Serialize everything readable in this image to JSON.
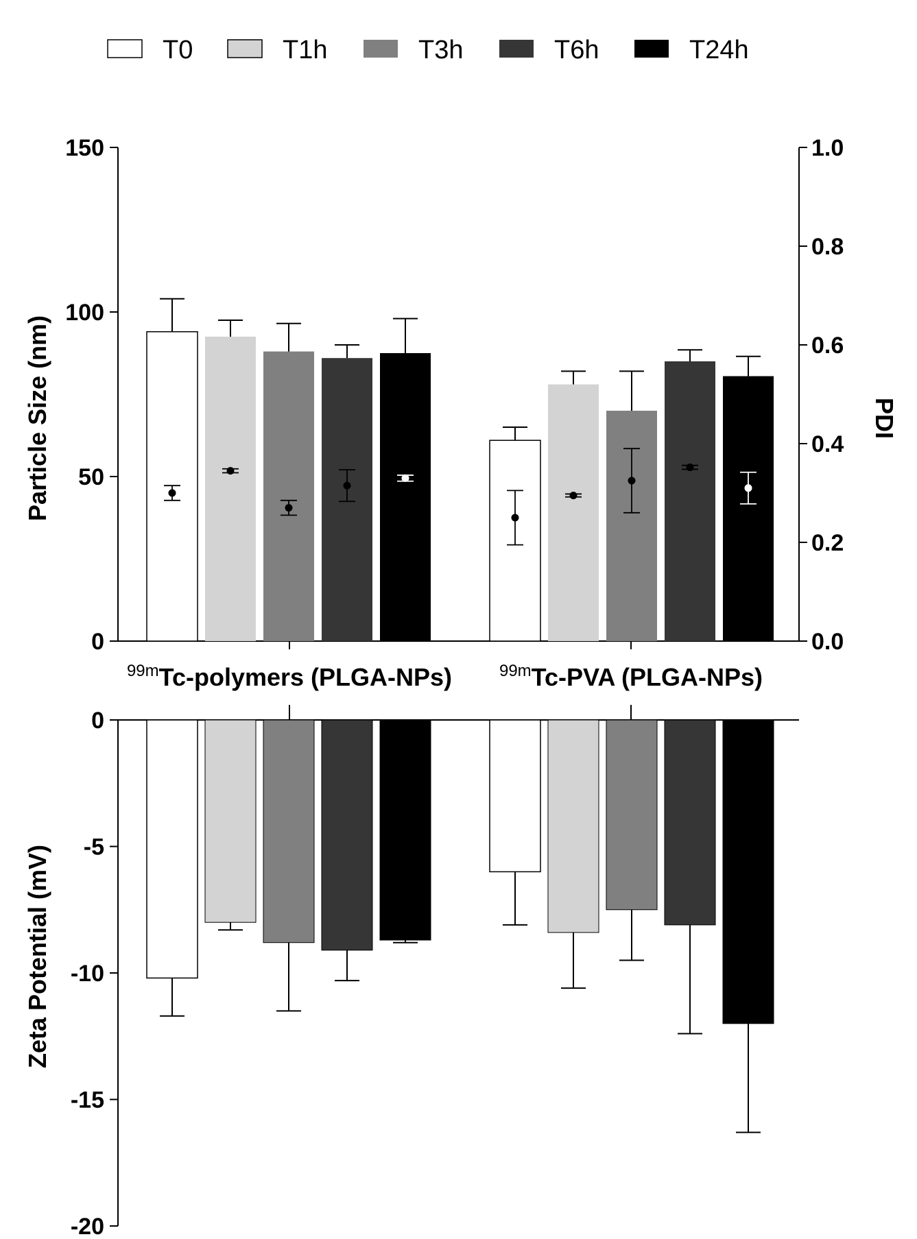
{
  "chart_data": {
    "type": "bar",
    "legend": {
      "placement": "top",
      "entries": [
        {
          "label": "T0",
          "color": "#ffffff"
        },
        {
          "label": "T1h",
          "color": "#d3d3d3"
        },
        {
          "label": "T3h",
          "color": "#808080"
        },
        {
          "label": "T6h",
          "color": "#363636"
        },
        {
          "label": "T24h",
          "color": "#000000"
        }
      ]
    },
    "groups": [
      {
        "sup": "99m",
        "label": "Tc-polymers (PLGA-NPs)"
      },
      {
        "sup": "99m",
        "label": "Tc-PVA (PLGA-NPs)"
      }
    ],
    "particle_size": {
      "ylabel": "Particle Size (nm)",
      "ylim": [
        0,
        150
      ],
      "ticks": [
        "0",
        "50",
        "100",
        "150"
      ],
      "y2label": "PDI",
      "y2lim": [
        0,
        1.0
      ],
      "y2ticks": [
        "0.0",
        "0.2",
        "0.4",
        "0.6",
        "0.8",
        "1.0"
      ],
      "series": [
        {
          "name": "T0",
          "values": [
            94,
            61
          ],
          "errors": [
            10,
            4
          ],
          "pdi": [
            0.3,
            0.25
          ],
          "pdi_err": [
            0.015,
            0.055
          ]
        },
        {
          "name": "T1h",
          "values": [
            92.5,
            78
          ],
          "errors": [
            5,
            4
          ],
          "pdi": [
            0.345,
            0.295
          ],
          "pdi_err": [
            0.004,
            0.003
          ]
        },
        {
          "name": "T3h",
          "values": [
            88,
            70
          ],
          "errors": [
            8.5,
            12
          ],
          "pdi": [
            0.27,
            0.325
          ],
          "pdi_err": [
            0.015,
            0.065
          ]
        },
        {
          "name": "T6h",
          "values": [
            86,
            85
          ],
          "errors": [
            4,
            3.5
          ],
          "pdi": [
            0.315,
            0.352
          ],
          "pdi_err": [
            0.032,
            0.004
          ]
        },
        {
          "name": "T24h",
          "values": [
            87.5,
            80.5
          ],
          "errors": [
            10.5,
            6
          ],
          "pdi": [
            0.33,
            0.31
          ],
          "pdi_err": [
            0.006,
            0.032
          ]
        }
      ]
    },
    "zeta_potential": {
      "ylabel": "Zeta Potential (mV)",
      "ylim": [
        -20,
        0
      ],
      "ticks": [
        "0",
        "-5",
        "-10",
        "-15",
        "-20"
      ],
      "series": [
        {
          "name": "T0",
          "values": [
            -10.2,
            -6.0
          ],
          "errors": [
            1.5,
            2.1
          ]
        },
        {
          "name": "T1h",
          "values": [
            -8.0,
            -8.4
          ],
          "errors": [
            0.3,
            2.2
          ]
        },
        {
          "name": "T3h",
          "values": [
            -8.8,
            -7.5
          ],
          "errors": [
            2.7,
            2.0
          ]
        },
        {
          "name": "T6h",
          "values": [
            -9.1,
            -8.1
          ],
          "errors": [
            1.2,
            4.3
          ]
        },
        {
          "name": "T24h",
          "values": [
            -8.7,
            -12.0
          ],
          "errors": [
            0.1,
            4.3
          ]
        }
      ]
    }
  }
}
